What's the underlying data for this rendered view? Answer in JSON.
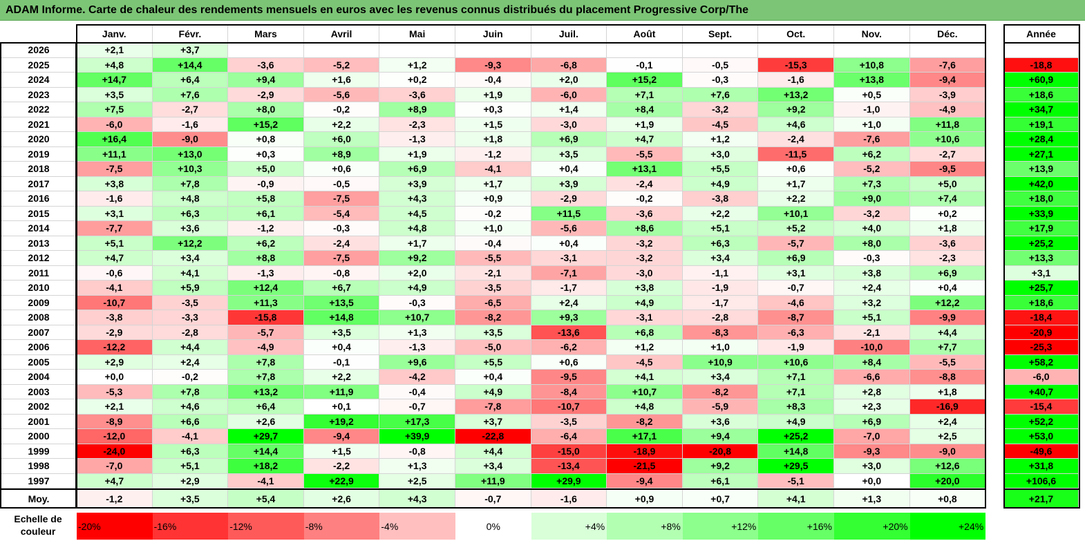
{
  "title": "ADAM Informe. Carte de chaleur des rendements mensuels en euros avec les revenus connus distribués du placement Progressive Corp/The",
  "chart_data": {
    "type": "heatmap",
    "title": "ADAM Informe. Carte de chaleur des rendements mensuels en euros avec les revenus connus distribués du placement Progressive Corp/The",
    "months": [
      "Janv.",
      "Févr.",
      "Mars",
      "Avril",
      "Mai",
      "Juin",
      "Juil.",
      "Août",
      "Sept.",
      "Oct.",
      "Nov.",
      "Déc."
    ],
    "year_column_label": "Année",
    "rows": [
      {
        "year": "2026",
        "values": [
          "+2,1",
          "+3,7",
          "",
          "",
          "",
          "",
          "",
          "",
          "",
          "",
          "",
          ""
        ],
        "annual": ""
      },
      {
        "year": "2025",
        "values": [
          "+4,8",
          "+14,4",
          "-3,6",
          "-5,2",
          "+1,2",
          "-9,3",
          "-6,8",
          "-0,1",
          "-0,5",
          "-15,3",
          "+10,8",
          "-7,6"
        ],
        "annual": "-18,8"
      },
      {
        "year": "2024",
        "values": [
          "+14,7",
          "+6,4",
          "+9,4",
          "+1,6",
          "+0,2",
          "-0,4",
          "+2,0",
          "+15,2",
          "-0,3",
          "-1,6",
          "+13,8",
          "-9,4"
        ],
        "annual": "+60,9"
      },
      {
        "year": "2023",
        "values": [
          "+3,5",
          "+7,6",
          "-2,9",
          "-5,6",
          "-3,6",
          "+1,9",
          "-6,0",
          "+7,1",
          "+7,6",
          "+13,2",
          "+0,5",
          "-3,9"
        ],
        "annual": "+18,6"
      },
      {
        "year": "2022",
        "values": [
          "+7,5",
          "-2,7",
          "+8,0",
          "-0,2",
          "+8,9",
          "+0,3",
          "+1,4",
          "+8,4",
          "-3,2",
          "+9,2",
          "-1,0",
          "-4,9"
        ],
        "annual": "+34,7"
      },
      {
        "year": "2021",
        "values": [
          "-6,0",
          "-1,6",
          "+15,2",
          "+2,2",
          "-2,3",
          "+1,5",
          "-3,0",
          "+1,9",
          "-4,5",
          "+4,6",
          "+1,0",
          "+11,8"
        ],
        "annual": "+19,1"
      },
      {
        "year": "2020",
        "values": [
          "+16,4",
          "-9,0",
          "+0,8",
          "+6,0",
          "-1,3",
          "+1,8",
          "+6,9",
          "+4,7",
          "+1,2",
          "-2,4",
          "-7,6",
          "+10,6"
        ],
        "annual": "+28,4"
      },
      {
        "year": "2019",
        "values": [
          "+11,1",
          "+13,0",
          "+0,3",
          "+8,9",
          "+1,9",
          "-1,2",
          "+3,5",
          "-5,5",
          "+3,0",
          "-11,5",
          "+6,2",
          "-2,7"
        ],
        "annual": "+27,1"
      },
      {
        "year": "2018",
        "values": [
          "-7,5",
          "+10,3",
          "+5,0",
          "+0,6",
          "+6,9",
          "-4,1",
          "+0,4",
          "+13,1",
          "+5,5",
          "+0,6",
          "-5,2",
          "-9,5"
        ],
        "annual": "+13,9"
      },
      {
        "year": "2017",
        "values": [
          "+3,8",
          "+7,8",
          "-0,9",
          "-0,5",
          "+3,9",
          "+1,7",
          "+3,9",
          "-2,4",
          "+4,9",
          "+1,7",
          "+7,3",
          "+5,0"
        ],
        "annual": "+42,0"
      },
      {
        "year": "2016",
        "values": [
          "-1,6",
          "+4,8",
          "+5,8",
          "-7,5",
          "+4,3",
          "+0,9",
          "-2,9",
          "-0,2",
          "-3,8",
          "+2,2",
          "+9,0",
          "+7,4"
        ],
        "annual": "+18,0"
      },
      {
        "year": "2015",
        "values": [
          "+3,1",
          "+6,3",
          "+6,1",
          "-5,4",
          "+4,5",
          "-0,2",
          "+11,5",
          "-3,6",
          "+2,2",
          "+10,1",
          "-3,2",
          "+0,2"
        ],
        "annual": "+33,9"
      },
      {
        "year": "2014",
        "values": [
          "-7,7",
          "+3,6",
          "-1,2",
          "-0,3",
          "+4,8",
          "+1,0",
          "-5,6",
          "+8,6",
          "+5,1",
          "+5,2",
          "+4,0",
          "+1,8"
        ],
        "annual": "+17,9"
      },
      {
        "year": "2013",
        "values": [
          "+5,1",
          "+12,2",
          "+6,2",
          "-2,4",
          "+1,7",
          "-0,4",
          "+0,4",
          "-3,2",
          "+6,3",
          "-5,7",
          "+8,0",
          "-3,6"
        ],
        "annual": "+25,2"
      },
      {
        "year": "2012",
        "values": [
          "+4,7",
          "+3,4",
          "+8,8",
          "-7,5",
          "+9,2",
          "-5,5",
          "-3,1",
          "-3,2",
          "+3,4",
          "+6,9",
          "-0,3",
          "-2,3"
        ],
        "annual": "+13,3"
      },
      {
        "year": "2011",
        "values": [
          "-0,6",
          "+4,1",
          "-1,3",
          "-0,8",
          "+2,0",
          "-2,1",
          "-7,1",
          "-3,0",
          "-1,1",
          "+3,1",
          "+3,8",
          "+6,9"
        ],
        "annual": "+3,1"
      },
      {
        "year": "2010",
        "values": [
          "-4,1",
          "+5,9",
          "+12,4",
          "+6,7",
          "+4,9",
          "-3,5",
          "-1,7",
          "+3,8",
          "-1,9",
          "-0,7",
          "+2,4",
          "+0,4"
        ],
        "annual": "+25,7"
      },
      {
        "year": "2009",
        "values": [
          "-10,7",
          "-3,5",
          "+11,3",
          "+13,5",
          "-0,3",
          "-6,5",
          "+2,4",
          "+4,9",
          "-1,7",
          "-4,6",
          "+3,2",
          "+12,2"
        ],
        "annual": "+18,6"
      },
      {
        "year": "2008",
        "values": [
          "-3,8",
          "-3,3",
          "-15,8",
          "+14,8",
          "+10,7",
          "-8,2",
          "+9,3",
          "-3,1",
          "-2,8",
          "-8,7",
          "+5,1",
          "-9,9"
        ],
        "annual": "-18,4"
      },
      {
        "year": "2007",
        "values": [
          "-2,9",
          "-2,8",
          "-5,7",
          "+3,5",
          "+1,3",
          "+3,5",
          "-13,6",
          "+6,8",
          "-8,3",
          "-6,3",
          "-2,1",
          "+4,4"
        ],
        "annual": "-20,9"
      },
      {
        "year": "2006",
        "values": [
          "-12,2",
          "+4,4",
          "-4,9",
          "+0,4",
          "-1,3",
          "-5,0",
          "-6,2",
          "+1,2",
          "+1,0",
          "-1,9",
          "-10,0",
          "+7,7"
        ],
        "annual": "-25,3"
      },
      {
        "year": "2005",
        "values": [
          "+2,9",
          "+2,4",
          "+7,8",
          "-0,1",
          "+9,6",
          "+5,5",
          "+0,6",
          "-4,5",
          "+10,9",
          "+10,6",
          "+8,4",
          "-5,5"
        ],
        "annual": "+58,2"
      },
      {
        "year": "2004",
        "values": [
          "+0,0",
          "-0,2",
          "+7,8",
          "+2,2",
          "-4,2",
          "+0,4",
          "-9,5",
          "+4,1",
          "+3,4",
          "+7,1",
          "-6,6",
          "-8,8"
        ],
        "annual": "-6,0"
      },
      {
        "year": "2003",
        "values": [
          "-5,3",
          "+7,8",
          "+13,2",
          "+11,9",
          "-0,4",
          "+4,9",
          "-8,4",
          "+10,7",
          "-8,2",
          "+7,1",
          "+2,8",
          "+1,8"
        ],
        "annual": "+40,7"
      },
      {
        "year": "2002",
        "values": [
          "+2,1",
          "+4,6",
          "+6,4",
          "+0,1",
          "-0,7",
          "-7,8",
          "-10,7",
          "+4,8",
          "-5,9",
          "+8,3",
          "+2,3",
          "-16,9"
        ],
        "annual": "-15,4"
      },
      {
        "year": "2001",
        "values": [
          "-8,9",
          "+6,6",
          "+2,6",
          "+19,2",
          "+17,3",
          "+3,7",
          "-3,5",
          "-8,2",
          "+3,6",
          "+4,9",
          "+6,9",
          "+2,4"
        ],
        "annual": "+52,2"
      },
      {
        "year": "2000",
        "values": [
          "-12,0",
          "-4,1",
          "+29,7",
          "-9,4",
          "+39,9",
          "-22,8",
          "-6,4",
          "+17,1",
          "+9,4",
          "+25,2",
          "-7,0",
          "+2,5"
        ],
        "annual": "+53,0"
      },
      {
        "year": "1999",
        "values": [
          "-24,0",
          "+6,3",
          "+14,4",
          "+1,5",
          "-0,8",
          "+4,4",
          "-15,0",
          "-18,9",
          "-20,8",
          "+14,8",
          "-9,3",
          "-9,0"
        ],
        "annual": "-49,6"
      },
      {
        "year": "1998",
        "values": [
          "-7,0",
          "+5,1",
          "+18,2",
          "-2,2",
          "+1,3",
          "+3,4",
          "-13,4",
          "-21,5",
          "+9,2",
          "+29,5",
          "+3,0",
          "+12,6"
        ],
        "annual": "+31,8"
      },
      {
        "year": "1997",
        "values": [
          "+4,7",
          "+2,9",
          "-4,1",
          "+22,9",
          "+2,5",
          "+11,9",
          "+29,9",
          "-9,4",
          "+6,1",
          "-5,1",
          "+0,0",
          "+20,0"
        ],
        "annual": "+106,6"
      }
    ],
    "average": {
      "label": "Moy.",
      "values": [
        "-1,2",
        "+3,5",
        "+5,4",
        "+2,6",
        "+4,3",
        "-0,7",
        "-1,6",
        "+0,9",
        "+0,7",
        "+4,1",
        "+1,3",
        "+0,8"
      ],
      "annual": "+21,7"
    },
    "legend": {
      "label": "Echelle de couleur",
      "steps": [
        "-20%",
        "-16%",
        "-12%",
        "-8%",
        "-4%",
        "0%",
        "+4%",
        "+8%",
        "+12%",
        "+16%",
        "+20%",
        "+24%"
      ],
      "colors": [
        "#ff0000",
        "#ff3333",
        "#ff5a5a",
        "#ff8080",
        "#ffbfbf",
        "#ffffff",
        "#d8ffd8",
        "#b2ffb2",
        "#8cff8c",
        "#66ff66",
        "#33ff33",
        "#00ff00"
      ]
    }
  }
}
